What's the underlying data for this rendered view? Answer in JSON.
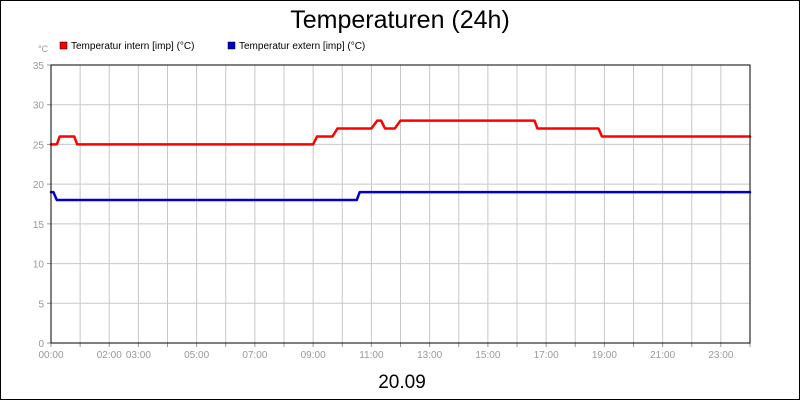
{
  "chart_data": {
    "type": "line",
    "title": "Temperaturen (24h)",
    "y_unit": "°C",
    "x_caption": "20.09",
    "ylim": [
      0,
      35
    ],
    "y_ticks": [
      0,
      5,
      10,
      15,
      20,
      25,
      30,
      35
    ],
    "xlim": [
      "00:00",
      "24:00"
    ],
    "x_ticks": [
      "00:00",
      "02:00",
      "03:00",
      "05:00",
      "07:00",
      "09:00",
      "11:00",
      "13:00",
      "15:00",
      "17:00",
      "19:00",
      "21:00",
      "23:00"
    ],
    "grid": true,
    "legend_placement": "top-left",
    "series": [
      {
        "name": "Temperatur intern [imp] (°C)",
        "color": "#ff0000",
        "points": [
          [
            "00:00",
            25
          ],
          [
            "00:12",
            25
          ],
          [
            "00:18",
            26
          ],
          [
            "00:48",
            26
          ],
          [
            "00:54",
            25
          ],
          [
            "09:00",
            25
          ],
          [
            "09:08",
            26
          ],
          [
            "09:40",
            26
          ],
          [
            "09:50",
            27
          ],
          [
            "11:00",
            27
          ],
          [
            "11:12",
            28
          ],
          [
            "11:20",
            28
          ],
          [
            "11:28",
            27
          ],
          [
            "11:48",
            27
          ],
          [
            "12:00",
            28
          ],
          [
            "16:36",
            28
          ],
          [
            "16:42",
            27
          ],
          [
            "18:48",
            27
          ],
          [
            "18:55",
            26
          ],
          [
            "24:00",
            26
          ]
        ]
      },
      {
        "name": "Temperatur extern [imp] (°C)",
        "color": "#0000cc",
        "points": [
          [
            "00:00",
            19
          ],
          [
            "00:05",
            19
          ],
          [
            "00:12",
            18
          ],
          [
            "10:30",
            18
          ],
          [
            "10:36",
            19
          ],
          [
            "24:00",
            19
          ]
        ]
      }
    ]
  }
}
